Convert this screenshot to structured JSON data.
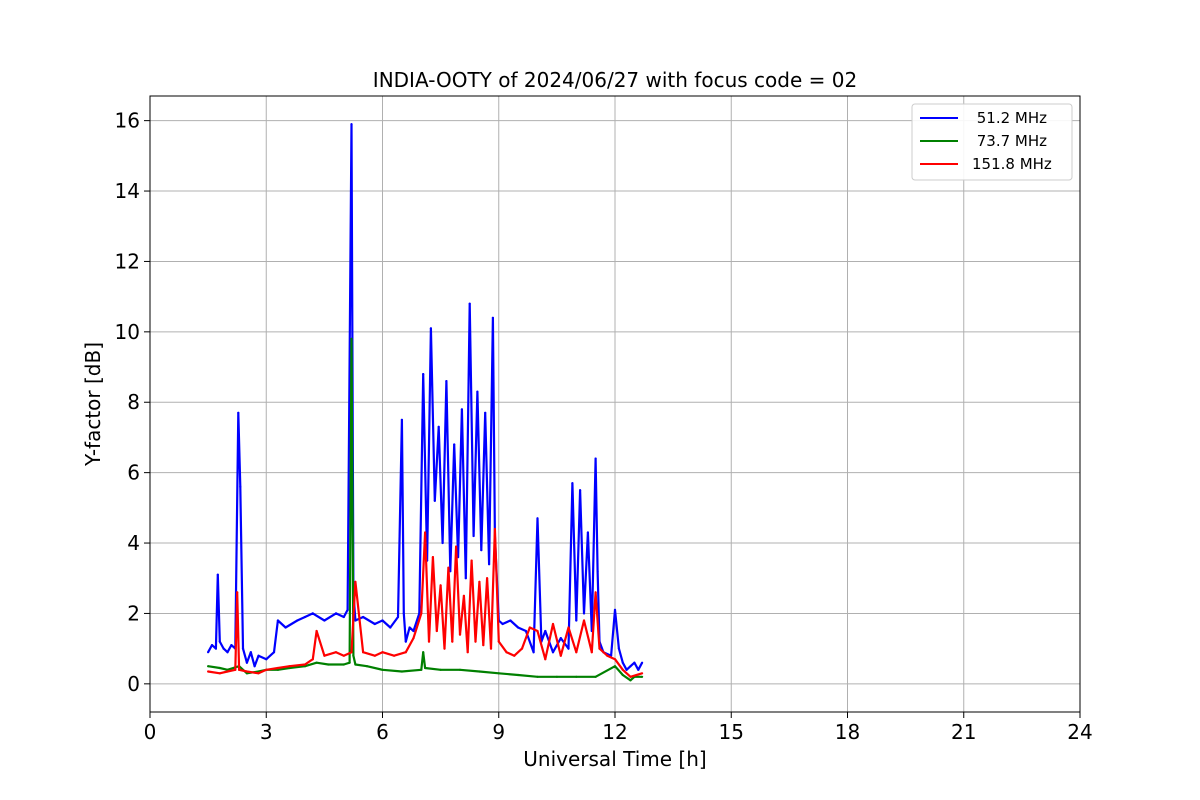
{
  "chart_data": {
    "type": "line",
    "title": "INDIA-OOTY of 2024/06/27 with focus code = 02",
    "xlabel": "Universal Time [h]",
    "ylabel": "Y-factor [dB]",
    "xlim": [
      0,
      24
    ],
    "ylim": [
      -0.8,
      16.7
    ],
    "xticks": [
      0,
      3,
      6,
      9,
      12,
      15,
      18,
      21,
      24
    ],
    "yticks": [
      0,
      2,
      4,
      6,
      8,
      10,
      12,
      14,
      16
    ],
    "grid": true,
    "legend_position": "top-right",
    "series": [
      {
        "name": " 51.2 MHz",
        "color": "#0000ff",
        "x": [
          1.5,
          1.6,
          1.7,
          1.75,
          1.8,
          1.9,
          2.0,
          2.1,
          2.2,
          2.28,
          2.33,
          2.4,
          2.5,
          2.6,
          2.7,
          2.8,
          3.0,
          3.2,
          3.3,
          3.5,
          3.8,
          4.0,
          4.2,
          4.5,
          4.8,
          5.0,
          5.1,
          5.2,
          5.25,
          5.3,
          5.5,
          5.8,
          6.0,
          6.2,
          6.4,
          6.5,
          6.55,
          6.6,
          6.7,
          6.8,
          6.95,
          7.05,
          7.15,
          7.25,
          7.35,
          7.45,
          7.55,
          7.65,
          7.75,
          7.85,
          7.95,
          8.05,
          8.15,
          8.25,
          8.35,
          8.45,
          8.55,
          8.65,
          8.75,
          8.85,
          8.9,
          9.0,
          9.1,
          9.3,
          9.5,
          9.7,
          9.9,
          10.0,
          10.1,
          10.2,
          10.4,
          10.6,
          10.8,
          10.9,
          11.0,
          11.1,
          11.2,
          11.3,
          11.4,
          11.5,
          11.55,
          11.6,
          11.7,
          11.9,
          12.0,
          12.1,
          12.2,
          12.3,
          12.4,
          12.5,
          12.6,
          12.7
        ],
        "y": [
          0.9,
          1.1,
          1.0,
          3.1,
          1.2,
          1.0,
          0.9,
          1.1,
          1.0,
          7.7,
          5.6,
          1.0,
          0.6,
          0.9,
          0.5,
          0.8,
          0.7,
          0.9,
          1.8,
          1.6,
          1.8,
          1.9,
          2.0,
          1.8,
          2.0,
          1.9,
          2.1,
          15.9,
          2.6,
          1.8,
          1.9,
          1.7,
          1.8,
          1.6,
          1.9,
          7.5,
          2.0,
          1.2,
          1.6,
          1.5,
          2.0,
          8.8,
          3.5,
          10.1,
          5.2,
          7.3,
          4.0,
          8.6,
          3.2,
          6.8,
          3.6,
          7.8,
          3.0,
          10.8,
          4.2,
          8.3,
          3.8,
          7.7,
          3.4,
          10.4,
          4.2,
          1.8,
          1.7,
          1.8,
          1.6,
          1.5,
          0.9,
          4.7,
          1.2,
          1.5,
          0.9,
          1.3,
          1.0,
          5.7,
          1.8,
          5.5,
          2.0,
          4.3,
          1.5,
          6.4,
          3.2,
          1.2,
          0.9,
          0.8,
          2.1,
          1.0,
          0.6,
          0.4,
          0.5,
          0.6,
          0.4,
          0.6
        ]
      },
      {
        "name": " 73.7 MHz",
        "color": "#008000",
        "x": [
          1.5,
          1.8,
          2.0,
          2.3,
          2.5,
          2.8,
          3.0,
          3.3,
          3.6,
          4.0,
          4.3,
          4.6,
          5.0,
          5.15,
          5.2,
          5.25,
          5.3,
          5.6,
          6.0,
          6.5,
          7.0,
          7.05,
          7.1,
          7.5,
          8.0,
          8.5,
          9.0,
          9.5,
          10.0,
          10.5,
          11.0,
          11.5,
          12.0,
          12.2,
          12.4,
          12.5,
          12.7
        ],
        "y": [
          0.5,
          0.45,
          0.4,
          0.5,
          0.3,
          0.35,
          0.4,
          0.4,
          0.45,
          0.5,
          0.6,
          0.55,
          0.55,
          0.6,
          9.8,
          0.8,
          0.55,
          0.5,
          0.4,
          0.35,
          0.4,
          0.9,
          0.45,
          0.4,
          0.4,
          0.35,
          0.3,
          0.25,
          0.2,
          0.2,
          0.2,
          0.2,
          0.5,
          0.25,
          0.1,
          0.2,
          0.2
        ]
      },
      {
        "name": "151.8 MHz",
        "color": "#ff0000",
        "x": [
          1.5,
          1.8,
          2.0,
          2.2,
          2.25,
          2.3,
          2.5,
          2.8,
          3.0,
          3.3,
          3.6,
          4.0,
          4.2,
          4.3,
          4.5,
          4.8,
          5.0,
          5.2,
          5.3,
          5.5,
          5.8,
          6.0,
          6.3,
          6.6,
          6.8,
          7.0,
          7.1,
          7.2,
          7.3,
          7.4,
          7.5,
          7.6,
          7.7,
          7.8,
          7.9,
          8.0,
          8.1,
          8.2,
          8.3,
          8.4,
          8.5,
          8.6,
          8.7,
          8.8,
          8.9,
          9.0,
          9.2,
          9.4,
          9.6,
          9.8,
          10.0,
          10.2,
          10.4,
          10.6,
          10.8,
          11.0,
          11.2,
          11.4,
          11.5,
          11.6,
          11.8,
          12.0,
          12.2,
          12.4,
          12.7
        ],
        "y": [
          0.35,
          0.3,
          0.35,
          0.4,
          2.6,
          0.4,
          0.35,
          0.3,
          0.4,
          0.45,
          0.5,
          0.55,
          0.7,
          1.5,
          0.8,
          0.9,
          0.8,
          0.9,
          2.9,
          0.9,
          0.8,
          0.9,
          0.8,
          0.9,
          1.3,
          2.0,
          4.3,
          1.2,
          3.6,
          1.5,
          2.8,
          1.0,
          3.3,
          1.2,
          3.9,
          1.4,
          2.5,
          0.9,
          3.5,
          1.2,
          2.9,
          1.1,
          3.0,
          1.0,
          4.4,
          1.2,
          0.9,
          0.8,
          1.0,
          1.6,
          1.5,
          0.7,
          1.7,
          0.8,
          1.6,
          0.9,
          1.8,
          0.9,
          2.6,
          1.0,
          0.8,
          0.7,
          0.4,
          0.2,
          0.3
        ]
      }
    ]
  }
}
